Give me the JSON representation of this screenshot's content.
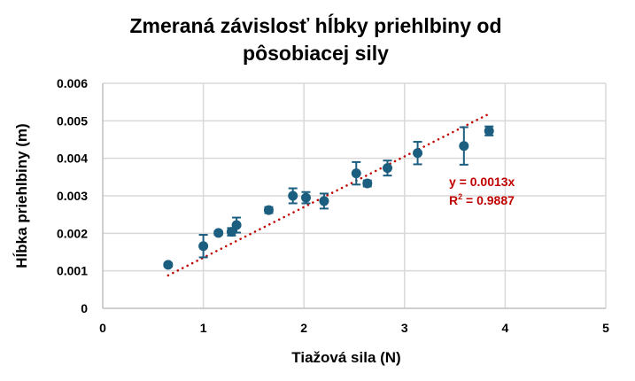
{
  "chart_data": {
    "type": "scatter",
    "title": "Zmeraná závislosť hĺbky priehlbiny od pôsobiacej sily",
    "title_lines": [
      "Zmeraná závislosť hĺbky priehlbiny od",
      "pôsobiacej sily"
    ],
    "xlabel": "Tiažová sila (N)",
    "ylabel": "Hĺbka priehlbiny (m)",
    "xlim": [
      0,
      5
    ],
    "ylim": [
      0,
      0.006
    ],
    "x_ticks": [
      "0",
      "1",
      "2",
      "3",
      "4",
      "5"
    ],
    "y_ticks": [
      "0",
      "0.001",
      "0.002",
      "0.003",
      "0.004",
      "0.005",
      "0.006"
    ],
    "grid": true,
    "legend": null,
    "series": [
      {
        "name": "Hĺbka priehlbiny",
        "color": "#1B5E80",
        "points": [
          {
            "x": 0.65,
            "y": 0.00116,
            "err": 5e-05
          },
          {
            "x": 1.0,
            "y": 0.00166,
            "err": 0.0003
          },
          {
            "x": 1.15,
            "y": 0.00201,
            "err": 5e-05
          },
          {
            "x": 1.28,
            "y": 0.00204,
            "err": 0.0001
          },
          {
            "x": 1.33,
            "y": 0.00222,
            "err": 0.0002
          },
          {
            "x": 1.65,
            "y": 0.00262,
            "err": 8e-05
          },
          {
            "x": 1.89,
            "y": 0.003,
            "err": 0.0002
          },
          {
            "x": 2.02,
            "y": 0.00295,
            "err": 0.00015
          },
          {
            "x": 2.2,
            "y": 0.00286,
            "err": 0.0002
          },
          {
            "x": 2.52,
            "y": 0.0036,
            "err": 0.0003
          },
          {
            "x": 2.63,
            "y": 0.00333,
            "err": 8e-05
          },
          {
            "x": 2.83,
            "y": 0.00374,
            "err": 0.0002
          },
          {
            "x": 3.13,
            "y": 0.00414,
            "err": 0.0003
          },
          {
            "x": 3.59,
            "y": 0.00433,
            "err": 0.0005
          },
          {
            "x": 3.84,
            "y": 0.00473,
            "err": 0.00012
          }
        ]
      }
    ],
    "trendline": {
      "type": "linear",
      "color": "#C00000",
      "style": "dotted",
      "slope": 0.00135,
      "x_range": [
        0.65,
        3.83
      ],
      "equation": "y = 0.0013x",
      "r_squared_label": "R",
      "r_squared_sup": "2",
      "r_squared_value": " = 0.9887"
    }
  }
}
